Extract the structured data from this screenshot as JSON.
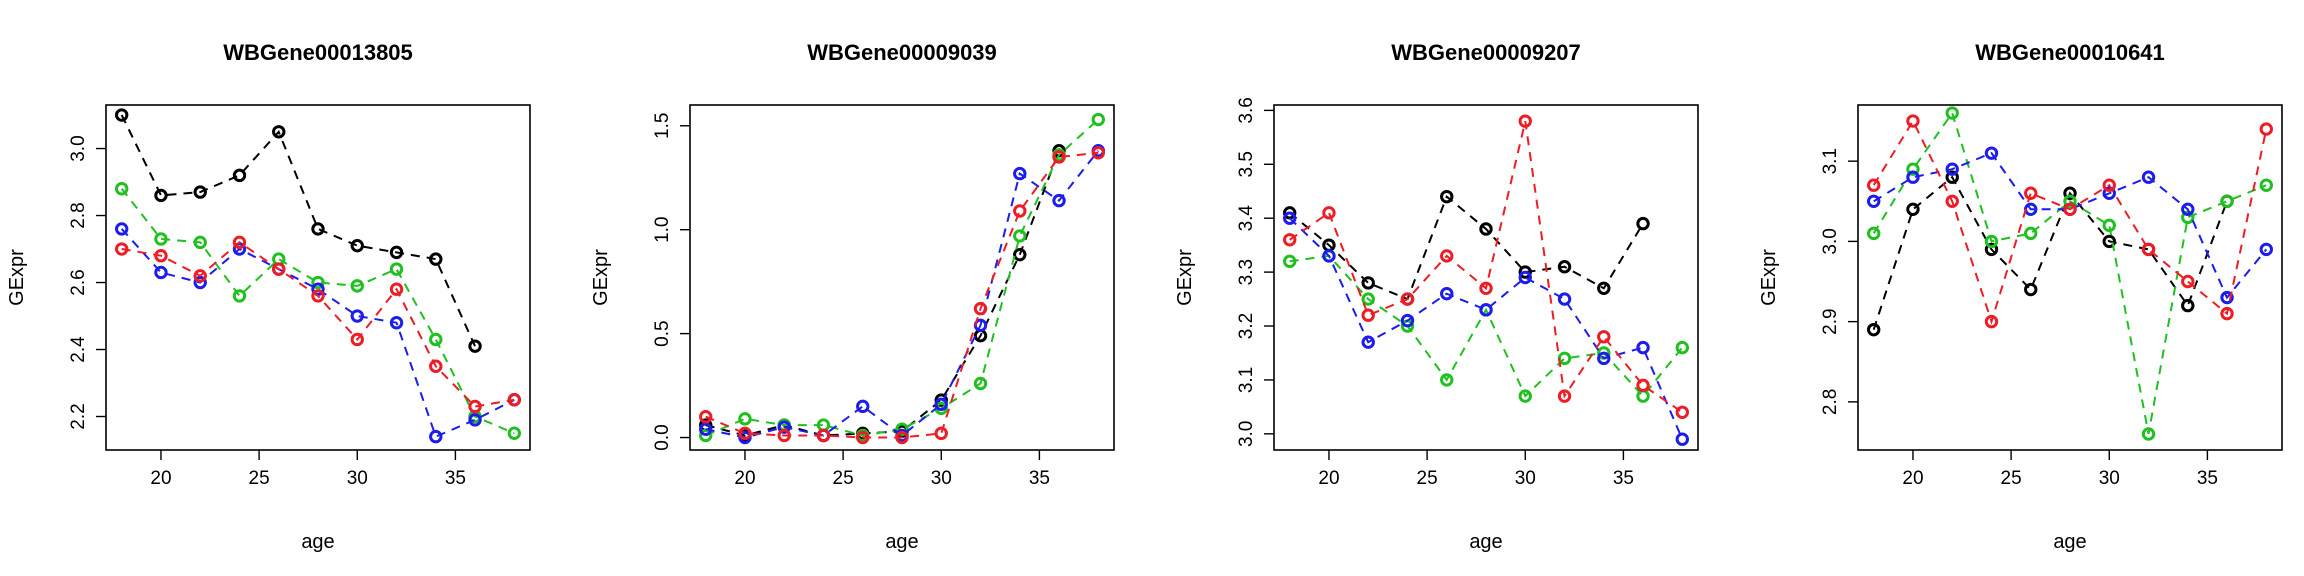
{
  "colors": {
    "black": "#000000",
    "red": "#ee1c25",
    "green": "#1fc01f",
    "blue": "#1c1cee"
  },
  "chart_data": [
    {
      "type": "line",
      "title": "WBGene00013805",
      "xlabel": "age",
      "ylabel": "GExpr",
      "xlim": [
        17.2,
        38.8
      ],
      "ylim": [
        2.1,
        3.13
      ],
      "xticks": [
        20,
        25,
        30,
        35
      ],
      "yticks": [
        2.2,
        2.4,
        2.6,
        2.8,
        3.0
      ],
      "x": [
        18,
        20,
        22,
        24,
        26,
        28,
        30,
        32,
        34,
        36,
        38
      ],
      "series": [
        {
          "color": "black",
          "values": [
            3.1,
            2.86,
            2.87,
            2.92,
            3.05,
            2.76,
            2.71,
            2.69,
            2.67,
            2.41,
            null
          ]
        },
        {
          "color": "green",
          "values": [
            2.88,
            2.73,
            2.72,
            2.56,
            2.67,
            2.6,
            2.59,
            2.64,
            2.43,
            2.2,
            2.15
          ]
        },
        {
          "color": "blue",
          "values": [
            2.76,
            2.63,
            2.6,
            2.7,
            2.64,
            2.58,
            2.5,
            2.48,
            2.14,
            2.19,
            2.25
          ]
        },
        {
          "color": "red",
          "values": [
            2.7,
            2.68,
            2.62,
            2.72,
            2.64,
            2.56,
            2.43,
            2.58,
            2.35,
            2.23,
            2.25
          ]
        }
      ]
    },
    {
      "type": "line",
      "title": "WBGene00009039",
      "xlabel": "age",
      "ylabel": "GExpr",
      "xlim": [
        17.2,
        38.8
      ],
      "ylim": [
        -0.06,
        1.6
      ],
      "xticks": [
        20,
        25,
        30,
        35
      ],
      "yticks": [
        0.0,
        0.5,
        1.0,
        1.5
      ],
      "x": [
        18,
        20,
        22,
        24,
        26,
        28,
        30,
        32,
        34,
        36,
        38
      ],
      "series": [
        {
          "color": "black",
          "values": [
            0.06,
            0.01,
            0.06,
            0.01,
            0.02,
            0.03,
            0.18,
            0.49,
            0.88,
            1.38,
            null
          ]
        },
        {
          "color": "green",
          "values": [
            0.01,
            0.09,
            0.06,
            0.06,
            0.01,
            0.04,
            0.14,
            0.26,
            0.97,
            1.36,
            1.53
          ]
        },
        {
          "color": "blue",
          "values": [
            0.04,
            0.0,
            0.05,
            0.01,
            0.15,
            0.01,
            0.16,
            0.54,
            1.27,
            1.14,
            1.38
          ]
        },
        {
          "color": "red",
          "values": [
            0.1,
            0.02,
            0.01,
            0.01,
            0.0,
            0.0,
            0.02,
            0.62,
            1.09,
            1.35,
            1.37
          ]
        }
      ]
    },
    {
      "type": "line",
      "title": "WBGene00009207",
      "xlabel": "age",
      "ylabel": "GExpr",
      "xlim": [
        17.2,
        38.8
      ],
      "ylim": [
        2.97,
        3.61
      ],
      "xticks": [
        20,
        25,
        30,
        35
      ],
      "yticks": [
        3.0,
        3.1,
        3.2,
        3.3,
        3.4,
        3.5,
        3.6
      ],
      "x": [
        18,
        20,
        22,
        24,
        26,
        28,
        30,
        32,
        34,
        36,
        38
      ],
      "series": [
        {
          "color": "black",
          "values": [
            3.41,
            3.35,
            3.28,
            3.25,
            3.44,
            3.38,
            3.3,
            3.31,
            3.27,
            3.39,
            null
          ]
        },
        {
          "color": "green",
          "values": [
            3.32,
            3.33,
            3.25,
            3.2,
            3.1,
            3.23,
            3.07,
            3.14,
            3.15,
            3.07,
            3.16
          ]
        },
        {
          "color": "blue",
          "values": [
            3.4,
            3.33,
            3.17,
            3.21,
            3.26,
            3.23,
            3.29,
            3.25,
            3.14,
            3.16,
            2.99
          ]
        },
        {
          "color": "red",
          "values": [
            3.36,
            3.41,
            3.22,
            3.25,
            3.33,
            3.27,
            3.58,
            3.07,
            3.18,
            3.09,
            3.04
          ]
        }
      ]
    },
    {
      "type": "line",
      "title": "WBGene00010641",
      "xlabel": "age",
      "ylabel": "GExpr",
      "xlim": [
        17.2,
        38.8
      ],
      "ylim": [
        2.74,
        3.17
      ],
      "xticks": [
        20,
        25,
        30,
        35
      ],
      "yticks": [
        2.8,
        2.9,
        3.0,
        3.1
      ],
      "x": [
        18,
        20,
        22,
        24,
        26,
        28,
        30,
        32,
        34,
        36,
        38
      ],
      "series": [
        {
          "color": "black",
          "values": [
            2.89,
            3.04,
            3.08,
            2.99,
            2.94,
            3.06,
            3.0,
            2.99,
            2.92,
            3.05,
            null
          ]
        },
        {
          "color": "green",
          "values": [
            3.01,
            3.09,
            3.16,
            3.0,
            3.01,
            3.05,
            3.02,
            2.76,
            3.03,
            3.05,
            3.07
          ]
        },
        {
          "color": "blue",
          "values": [
            3.05,
            3.08,
            3.09,
            3.11,
            3.04,
            3.04,
            3.06,
            3.08,
            3.04,
            2.93,
            2.99
          ]
        },
        {
          "color": "red",
          "values": [
            3.07,
            3.15,
            3.05,
            2.9,
            3.06,
            3.04,
            3.07,
            2.99,
            2.95,
            2.91,
            3.14
          ]
        }
      ]
    }
  ]
}
